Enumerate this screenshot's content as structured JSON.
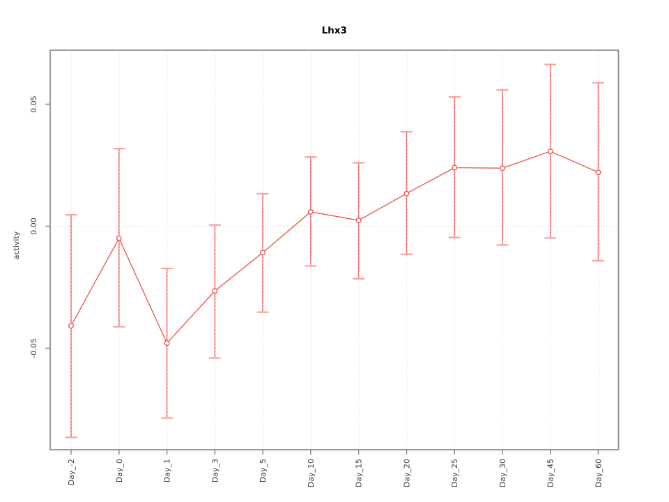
{
  "chart_data": {
    "type": "line",
    "title": "Lhx3",
    "xlabel": "",
    "ylabel": "activity",
    "categories": [
      "Day_-2",
      "Day_0",
      "Day_1",
      "Day_3",
      "Day_5",
      "Day_10",
      "Day_15",
      "Day_20",
      "Day_25",
      "Day_30",
      "Day_45",
      "Day_60"
    ],
    "series": [
      {
        "name": "Lhx3 activity",
        "values": [
          -0.0408,
          -0.0049,
          -0.0479,
          -0.0265,
          -0.0108,
          0.0059,
          0.0024,
          0.0134,
          0.024,
          0.0238,
          0.0307,
          0.0221
        ],
        "upper": [
          0.0047,
          0.0318,
          -0.0173,
          0.0005,
          0.0133,
          0.0284,
          0.026,
          0.0387,
          0.053,
          0.0559,
          0.0663,
          0.0588
        ],
        "lower": [
          -0.0865,
          -0.0412,
          -0.0786,
          -0.054,
          -0.0352,
          -0.0163,
          -0.0215,
          -0.0115,
          -0.0046,
          -0.0077,
          -0.0048,
          -0.0141
        ]
      }
    ],
    "yticks": [
      0.05,
      0.0,
      -0.05
    ],
    "ytick_labels": [
      "0.05",
      "0.00",
      "-0.05"
    ],
    "ylim": [
      -0.092,
      0.072
    ],
    "grid": {
      "vertical_dotted_per_category": true,
      "horizontal_dotted_at_zero": true
    },
    "legend": "none",
    "marker": "open-circle",
    "colors": {
      "line": "#ef5148",
      "error_bar": "#f7918c",
      "error_bar_dash": "#ee4f47",
      "error_bar_cap": "#f9a3a0",
      "grid": "#d7d7d7",
      "box": "#8f8f8f",
      "text": "#3c3c3c",
      "background": "#ffffff"
    }
  }
}
